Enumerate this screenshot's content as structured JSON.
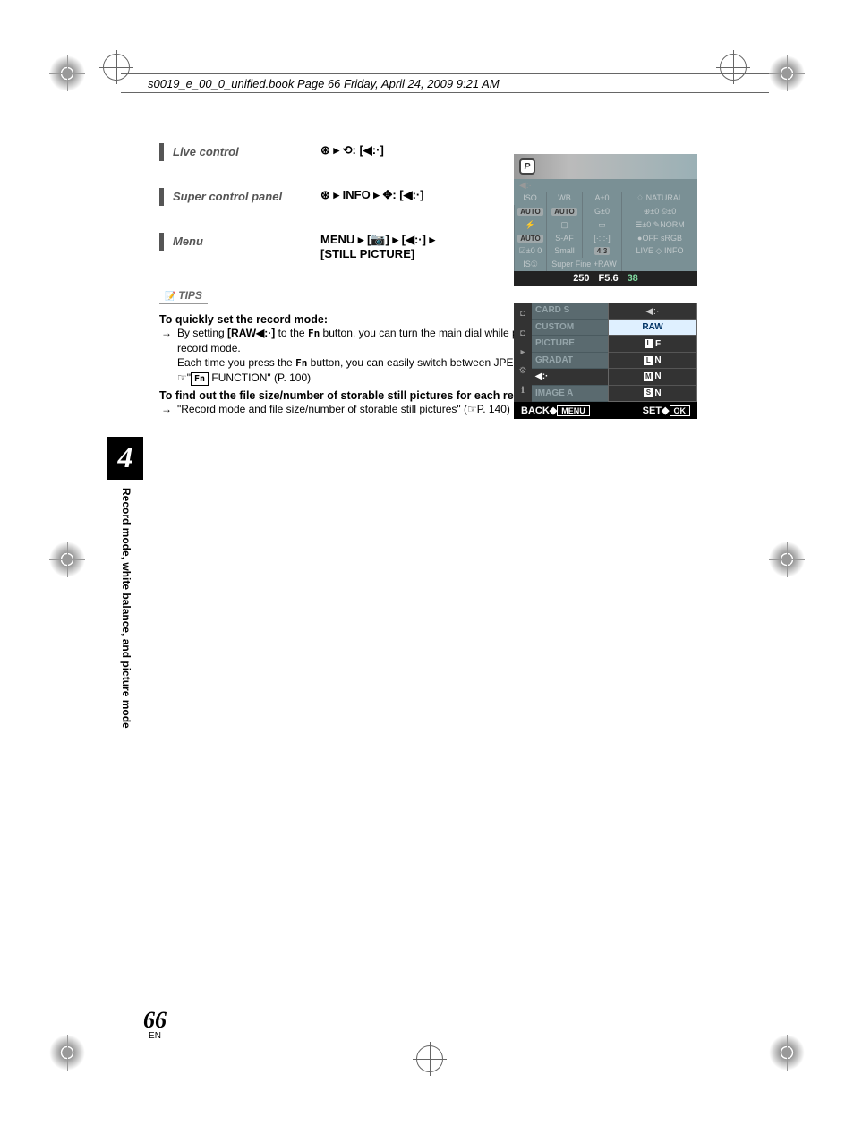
{
  "header": {
    "filepath": "s0019_e_00_0_unified.book  Page 66  Friday, April 24, 2009  9:21 AM"
  },
  "chapter": {
    "number": "4",
    "side_label": "Record mode, white balance, and picture mode"
  },
  "page": {
    "number": "66",
    "lang": "EN"
  },
  "sections": {
    "live": {
      "title": "Live control",
      "path": "⊛ ▸ ⟲: [◀:·]"
    },
    "scp": {
      "title": "Super control panel",
      "path": "⊛ ▸ INFO ▸ ✥: [◀:·]"
    },
    "menu": {
      "title": "Menu",
      "path1": "MENU ▸ [📷] ▸ [◀:·] ▸",
      "path2": "[STILL PICTURE]"
    }
  },
  "tips": {
    "label": "TIPS",
    "title1": "To quickly set the record mode:",
    "body1a": "By setting ",
    "body1a_bold": "[RAW◀:·]",
    "body1b": " to the ",
    "body1c": " button, you can turn the main dial while pressing the ",
    "body1d": " button to change the record mode.",
    "body1e": "Each time you press the ",
    "body1f": " button, you can easily switch between JPEG data only and JPEG and RAW data.",
    "body1g_ref": " FUNCTION\" (P. 100)",
    "title2": "To find out the file size/number of storable still pictures for each record mode:",
    "body2": "\"Record mode and file size/number of storable still pictures\" (☞P. 140)"
  },
  "scp_panel": {
    "mode": "P",
    "row1": [
      "ISO",
      "WB",
      "A±0",
      "♢ NATURAL"
    ],
    "row1b": [
      "AUTO",
      "AUTO",
      "G±0",
      "⊕±0  ©±0"
    ],
    "row2": [
      "⚡",
      "▢",
      "▭",
      "☰±0  ✎NORM"
    ],
    "row2b": [
      "AUTO",
      "S-AF",
      "[·:::·]",
      "●OFF sRGB"
    ],
    "row3": [
      "☑±0 0",
      "Small",
      "4:3",
      "LIVE ◇ INFO"
    ],
    "row3b": [
      "IS①",
      "Super Fine  +RAW",
      "",
      ""
    ],
    "bottom": {
      "shutter": "250",
      "aperture": "F5.6",
      "count": "38"
    }
  },
  "menu_panel": {
    "left_items": [
      "CARD S",
      "CUSTOM",
      "PICTURE",
      "GRADAT",
      "◀:·",
      "IMAGE A"
    ],
    "right_header": "◀:·",
    "right_items": [
      "RAW",
      "LF",
      "LN",
      "MN",
      "SN"
    ],
    "footer": {
      "back": "BACK",
      "back_key": "MENU",
      "set": "SET",
      "set_key": "OK"
    }
  }
}
